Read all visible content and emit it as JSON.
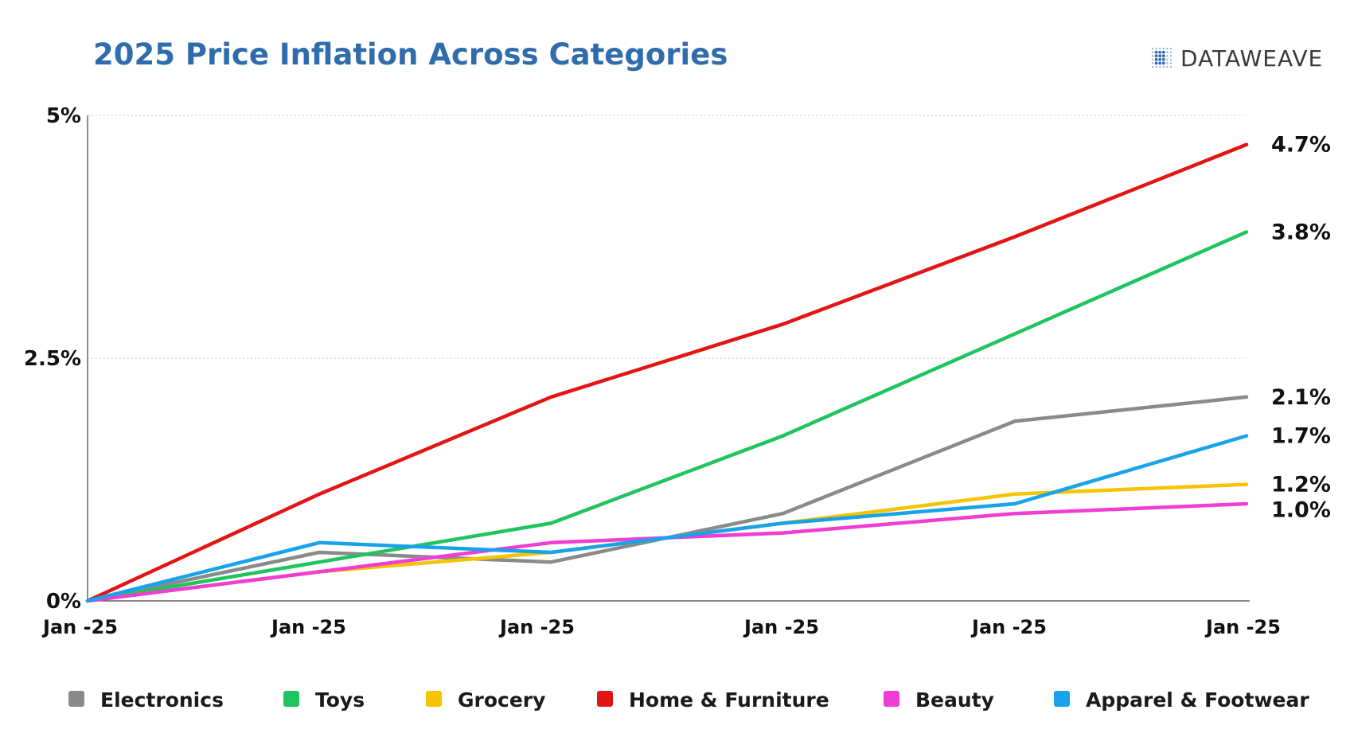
{
  "brand": {
    "name": "DATAWEAVE",
    "logo_icon": "dot-grid-logo-icon",
    "logo_color": "#2f6cad"
  },
  "chart_data": {
    "type": "line",
    "title": "2025 Price Inflation Across Categories",
    "xlabel": "",
    "ylabel": "",
    "categories": [
      "Jan -25",
      "Jan -25",
      "Jan -25",
      "Jan -25",
      "Jan -25",
      "Jan -25"
    ],
    "ylim": [
      0,
      5
    ],
    "yticks": [
      {
        "value": 0,
        "label": "0%"
      },
      {
        "value": 2.5,
        "label": "2.5%"
      },
      {
        "value": 5,
        "label": "5%"
      }
    ],
    "grid": "horizontal dotted",
    "legend_position": "bottom",
    "series": [
      {
        "name": "Electronics",
        "color": "#8a8a8a",
        "values": [
          0,
          0.5,
          0.4,
          0.9,
          1.85,
          2.1
        ],
        "end_label": "2.1%"
      },
      {
        "name": "Toys",
        "color": "#1fc45f",
        "values": [
          0,
          0.4,
          0.8,
          1.7,
          2.75,
          3.8
        ],
        "end_label": "3.8%"
      },
      {
        "name": "Grocery",
        "color": "#f5c400",
        "values": [
          0,
          0.3,
          0.5,
          0.8,
          1.1,
          1.2
        ],
        "end_label": "1.2%"
      },
      {
        "name": "Home & Furniture",
        "color": "#e31414",
        "values": [
          0,
          1.1,
          2.1,
          2.85,
          3.75,
          4.7
        ],
        "end_label": "4.7%"
      },
      {
        "name": "Beauty",
        "color": "#f03dd3",
        "values": [
          0,
          0.3,
          0.6,
          0.7,
          0.9,
          1.0
        ],
        "end_label": "1.0%"
      },
      {
        "name": "Apparel & Footwear",
        "color": "#17a3ea",
        "values": [
          0,
          0.6,
          0.5,
          0.8,
          1.0,
          1.7
        ],
        "end_label": "1.7%"
      }
    ]
  }
}
